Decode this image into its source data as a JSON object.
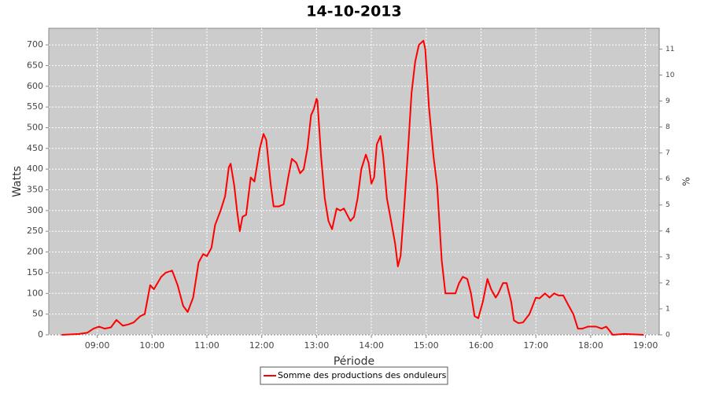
{
  "chart_data": {
    "type": "line",
    "title": "14-10-2013",
    "x_label": "Période",
    "y_label": "Watts",
    "y2_label": "%",
    "x": [
      "08:21",
      "08:40",
      "08:49",
      "08:56",
      "09:02",
      "09:08",
      "09:15",
      "09:21",
      "09:28",
      "09:34",
      "09:40",
      "09:47",
      "09:52",
      "09:58",
      "10:02",
      "10:10",
      "10:15",
      "10:22",
      "10:28",
      "10:34",
      "10:39",
      "10:45",
      "10:51",
      "10:56",
      "11:00",
      "11:05",
      "11:09",
      "11:15",
      "11:20",
      "11:24",
      "11:26",
      "11:30",
      "11:33",
      "11:36",
      "11:39",
      "11:43",
      "11:48",
      "11:52",
      "11:58",
      "12:02",
      "12:05",
      "12:10",
      "12:13",
      "12:19",
      "12:24",
      "12:29",
      "12:33",
      "12:38",
      "12:42",
      "12:46",
      "12:50",
      "12:54",
      "12:57",
      "13:00",
      "13:01",
      "13:05",
      "13:09",
      "13:13",
      "13:17",
      "13:22",
      "13:26",
      "13:30",
      "13:37",
      "13:41",
      "13:45",
      "13:49",
      "13:54",
      "13:57",
      "14:00",
      "14:03",
      "14:06",
      "14:10",
      "14:13",
      "14:17",
      "14:22",
      "14:26",
      "14:29",
      "14:32",
      "14:36",
      "14:40",
      "14:44",
      "14:48",
      "14:52",
      "14:57",
      "14:59",
      "15:03",
      "15:08",
      "15:12",
      "15:17",
      "15:21",
      "15:28",
      "15:32",
      "15:36",
      "15:40",
      "15:45",
      "15:49",
      "15:53",
      "15:57",
      "16:02",
      "16:07",
      "16:11",
      "16:16",
      "16:19",
      "16:24",
      "16:28",
      "16:33",
      "16:36",
      "16:41",
      "16:46",
      "16:53",
      "17:00",
      "17:04",
      "17:10",
      "17:15",
      "17:20",
      "17:25",
      "17:30",
      "17:36",
      "17:41",
      "17:46",
      "17:51",
      "17:57",
      "18:06",
      "18:12",
      "18:17",
      "18:20",
      "18:24",
      "18:37",
      "18:58"
    ],
    "series": [
      {
        "name": "Somme des productions des onduleurs",
        "color": "#ff0000",
        "values": [
          0,
          2,
          5,
          15,
          20,
          15,
          18,
          36,
          22,
          25,
          30,
          45,
          50,
          120,
          110,
          140,
          150,
          155,
          120,
          70,
          55,
          90,
          175,
          195,
          190,
          210,
          265,
          300,
          335,
          405,
          413,
          360,
          300,
          250,
          285,
          290,
          380,
          370,
          450,
          485,
          470,
          360,
          310,
          310,
          315,
          380,
          425,
          415,
          390,
          400,
          450,
          530,
          545,
          570,
          565,
          430,
          330,
          275,
          255,
          305,
          300,
          305,
          275,
          285,
          330,
          400,
          435,
          415,
          365,
          380,
          460,
          480,
          430,
          330,
          270,
          220,
          165,
          190,
          310,
          440,
          585,
          660,
          700,
          710,
          690,
          550,
          430,
          360,
          180,
          100,
          100,
          100,
          125,
          140,
          135,
          100,
          45,
          40,
          80,
          135,
          110,
          90,
          100,
          125,
          125,
          80,
          35,
          28,
          30,
          50,
          90,
          88,
          100,
          90,
          100,
          95,
          95,
          70,
          50,
          15,
          15,
          20,
          20,
          15,
          20,
          12,
          0,
          2,
          0
        ]
      }
    ],
    "xlim": [
      "08:07",
      "19:15"
    ],
    "xticks": [
      "09:00",
      "10:00",
      "11:00",
      "12:00",
      "13:00",
      "14:00",
      "15:00",
      "16:00",
      "17:00",
      "18:00",
      "19:00"
    ],
    "ylim": [
      0,
      740
    ],
    "yticks": [
      0,
      50,
      100,
      150,
      200,
      250,
      300,
      350,
      400,
      450,
      500,
      550,
      600,
      650,
      700
    ],
    "y2lim": [
      0,
      11.8
    ],
    "y2ticks": [
      0,
      1,
      2,
      3,
      4,
      5,
      6,
      7,
      8,
      9,
      10,
      11
    ],
    "grid": true,
    "legend": "bottom"
  }
}
